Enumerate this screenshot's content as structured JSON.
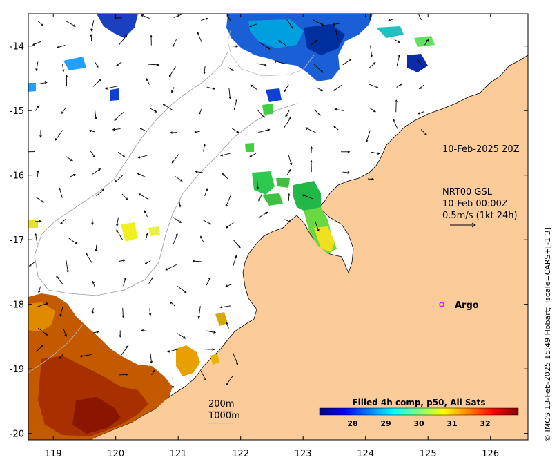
{
  "map": {
    "lon_range": [
      118.6,
      126.6
    ],
    "lat_range": [
      -20.1,
      -13.5
    ],
    "x_ticks": [
      119,
      120,
      121,
      122,
      123,
      124,
      125,
      126
    ],
    "y_ticks": [
      -14,
      -15,
      -16,
      -17,
      -18,
      -19,
      -20
    ],
    "colors": {
      "land": "#fccb9a",
      "sea": "#ffffff",
      "frame": "#000000",
      "argo": "#ff00ff"
    }
  },
  "annotations": {
    "timestamp": "10-Feb-2025 20Z",
    "current_source": "NRT00 GSL",
    "current_time": "10-Feb 00:00Z",
    "current_scale": "0.5m/s (1kt 24h)",
    "argo_label": "Argo"
  },
  "legend": {
    "isobath_200": "200m",
    "isobath_1000": "1000m"
  },
  "colorbar": {
    "title": "Filled 4h comp, p50, All Sats",
    "min": 27,
    "max": 33,
    "ticks": [
      28,
      29,
      30,
      31,
      32
    ],
    "colors": [
      "#00007f",
      "#0000ff",
      "#007fff",
      "#00ffff",
      "#7fff7f",
      "#ffff00",
      "#ff7f00",
      "#ff0000",
      "#7f0000"
    ]
  },
  "side_text": "© IMOS 13-Feb-2025 15:49 Hobart; Tscale=CARS+[-1 3]"
}
